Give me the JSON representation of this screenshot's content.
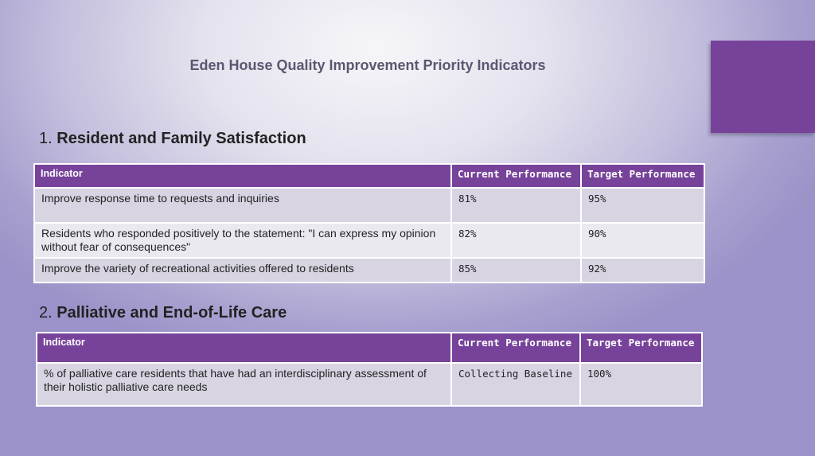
{
  "title": "Eden House Quality Improvement Priority Indicators",
  "colors": {
    "accent": "#77439a",
    "row_dark": "#d8d4e2",
    "row_light": "#ebe9f0"
  },
  "sections": [
    {
      "number": "1.",
      "heading": "Resident and Family Satisfaction",
      "columns": [
        "Indicator",
        "Current Performance",
        "Target Performance"
      ],
      "rows": [
        {
          "indicator": "Improve response time to requests and inquiries",
          "current": "81%",
          "target": "95%"
        },
        {
          "indicator": "Residents who responded positively to the statement: \"I can express my opinion without fear of consequences\"",
          "current": "82%",
          "target": "90%"
        },
        {
          "indicator": "Improve the variety of recreational activities offered to residents",
          "current": "85%",
          "target": "92%"
        }
      ]
    },
    {
      "number": "2.",
      "heading": "Palliative and End-of-Life Care",
      "columns": [
        "Indicator",
        "Current Performance",
        "Target Performance"
      ],
      "rows": [
        {
          "indicator": "% of palliative care residents that have had an interdisciplinary assessment of their holistic palliative care needs",
          "current": "Collecting Baseline",
          "target": "100%"
        }
      ]
    }
  ]
}
